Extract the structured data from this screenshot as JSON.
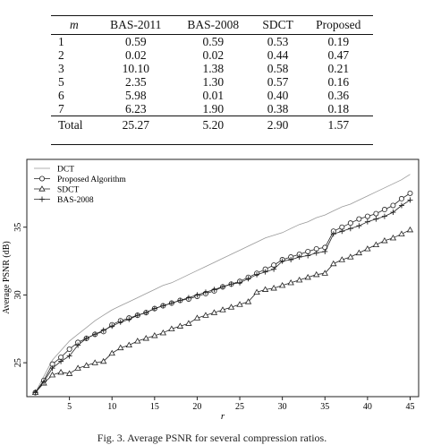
{
  "table": {
    "title": "",
    "headers": [
      "m",
      "BAS-2011",
      "BAS-2008",
      "SDCT",
      "Proposed"
    ],
    "rows": [
      [
        "1",
        "0.59",
        "0.59",
        "0.53",
        "0.19"
      ],
      [
        "2",
        "0.02",
        "0.02",
        "0.44",
        "0.47"
      ],
      [
        "3",
        "10.10",
        "1.38",
        "0.58",
        "0.21"
      ],
      [
        "5",
        "2.35",
        "1.30",
        "0.57",
        "0.16"
      ],
      [
        "6",
        "5.98",
        "0.01",
        "0.40",
        "0.36"
      ],
      [
        "7",
        "6.23",
        "1.90",
        "0.38",
        "0.18"
      ]
    ],
    "total": [
      "Total",
      "25.27",
      "5.20",
      "2.90",
      "1.57"
    ]
  },
  "chart_data": {
    "type": "line",
    "xlabel": "r",
    "ylabel": "Average PSNR (dB)",
    "xlim": [
      0,
      46
    ],
    "ylim": [
      22.5,
      40
    ],
    "xticks": [
      5,
      10,
      15,
      20,
      25,
      30,
      35,
      40,
      45
    ],
    "yticks": [
      25,
      30,
      35
    ],
    "legend_position": "top-left",
    "x": [
      1,
      2,
      3,
      4,
      5,
      6,
      7,
      8,
      9,
      10,
      11,
      12,
      13,
      14,
      15,
      16,
      17,
      18,
      19,
      20,
      21,
      22,
      23,
      24,
      25,
      26,
      27,
      28,
      29,
      30,
      31,
      32,
      33,
      34,
      35,
      36,
      37,
      38,
      39,
      40,
      41,
      42,
      43,
      44,
      45
    ],
    "series": [
      {
        "name": "DCT",
        "marker": "none",
        "values": [
          22.8,
          24.0,
          25.2,
          25.9,
          26.6,
          27.1,
          27.6,
          28.1,
          28.5,
          28.9,
          29.2,
          29.5,
          29.8,
          30.1,
          30.4,
          30.7,
          30.9,
          31.2,
          31.5,
          31.8,
          32.1,
          32.4,
          32.7,
          33.0,
          33.3,
          33.6,
          33.9,
          34.2,
          34.4,
          34.6,
          34.9,
          35.2,
          35.4,
          35.7,
          35.9,
          36.2,
          36.5,
          36.7,
          37.0,
          37.3,
          37.6,
          37.9,
          38.2,
          38.5,
          38.9
        ]
      },
      {
        "name": "Proposed Algorithm",
        "marker": "circle",
        "values": [
          22.8,
          23.7,
          24.9,
          25.4,
          26.0,
          26.5,
          26.8,
          27.1,
          27.3,
          27.8,
          28.1,
          28.3,
          28.5,
          28.7,
          29.0,
          29.2,
          29.4,
          29.6,
          29.7,
          29.9,
          30.1,
          30.3,
          30.6,
          30.8,
          31.0,
          31.3,
          31.6,
          31.9,
          32.2,
          32.6,
          32.8,
          33.0,
          33.2,
          33.4,
          33.5,
          34.7,
          35.0,
          35.3,
          35.6,
          35.8,
          36.0,
          36.3,
          36.6,
          37.1,
          37.5
        ]
      },
      {
        "name": "SDCT",
        "marker": "triangle",
        "values": [
          22.8,
          23.5,
          24.1,
          24.3,
          24.2,
          24.6,
          24.8,
          25.0,
          25.1,
          25.7,
          26.1,
          26.3,
          26.6,
          26.8,
          27.0,
          27.2,
          27.5,
          27.7,
          27.9,
          28.3,
          28.5,
          28.7,
          28.9,
          29.1,
          29.3,
          29.5,
          30.2,
          30.4,
          30.5,
          30.7,
          30.9,
          31.1,
          31.3,
          31.5,
          31.6,
          32.3,
          32.6,
          32.8,
          33.1,
          33.4,
          33.7,
          34.0,
          34.2,
          34.5,
          34.8
        ]
      },
      {
        "name": "BAS-2008",
        "marker": "plus",
        "values": [
          22.8,
          23.6,
          24.6,
          25.1,
          25.5,
          26.3,
          26.8,
          27.1,
          27.4,
          27.7,
          28.0,
          28.2,
          28.5,
          28.7,
          29.0,
          29.2,
          29.4,
          29.6,
          29.8,
          30.0,
          30.2,
          30.4,
          30.6,
          30.8,
          30.9,
          31.2,
          31.5,
          31.7,
          31.9,
          32.5,
          32.6,
          32.8,
          32.9,
          33.1,
          33.2,
          34.5,
          34.7,
          34.9,
          35.1,
          35.4,
          35.6,
          35.8,
          36.1,
          36.6,
          37.0
        ]
      }
    ]
  },
  "caption": "Fig. 3.  Average PSNR for several compression ratios."
}
